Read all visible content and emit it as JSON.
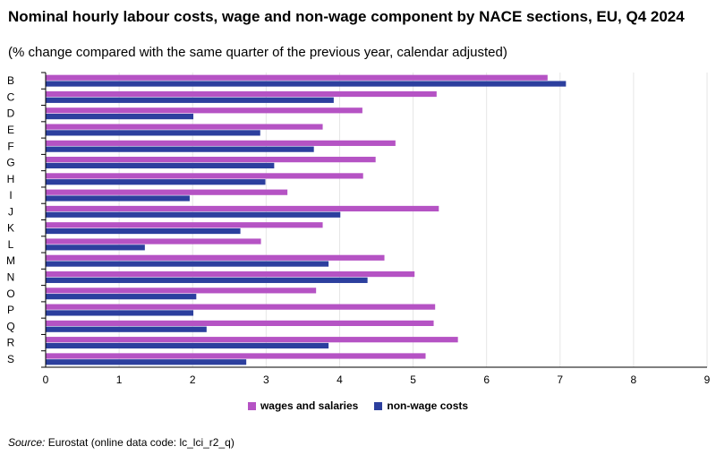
{
  "title": "Nominal hourly labour costs, wage and non-wage component by NACE sections, EU, Q4 2024",
  "subtitle": "(% change compared with the same quarter of the previous year, calendar adjusted)",
  "source": {
    "label": "Source:",
    "text": "Eurostat (online data code: lc_lci_r2_q)"
  },
  "colors": {
    "wages": "#b553c4",
    "nonwage": "#2c3f9e",
    "grid": "#e6e6e6",
    "axis": "#000000"
  },
  "chart_data": {
    "type": "bar",
    "orientation": "horizontal",
    "categories": [
      "B",
      "C",
      "D",
      "E",
      "F",
      "G",
      "H",
      "I",
      "J",
      "K",
      "L",
      "M",
      "N",
      "O",
      "P",
      "Q",
      "R",
      "S"
    ],
    "series": [
      {
        "name": "wages and salaries",
        "values": [
          6.83,
          5.32,
          4.31,
          3.77,
          4.76,
          4.49,
          4.32,
          3.29,
          5.35,
          3.77,
          2.93,
          4.61,
          5.02,
          3.68,
          5.3,
          5.28,
          5.61,
          5.17
        ]
      },
      {
        "name": "non-wage costs",
        "values": [
          7.08,
          3.92,
          2.01,
          2.92,
          3.65,
          3.11,
          2.99,
          1.96,
          4.01,
          2.65,
          1.35,
          3.85,
          4.38,
          2.05,
          2.01,
          2.19,
          3.85,
          2.73
        ]
      }
    ],
    "xlim": [
      0,
      9
    ],
    "xticks": [
      0,
      1,
      2,
      3,
      4,
      5,
      6,
      7,
      8,
      9
    ],
    "grid": true,
    "legend_position": "bottom-center"
  }
}
